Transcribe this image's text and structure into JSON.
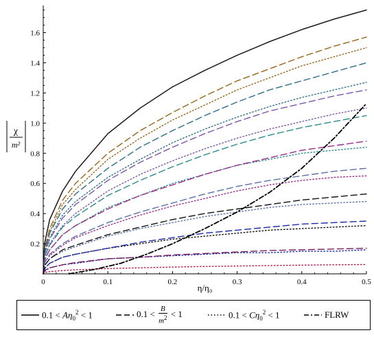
{
  "chart_data": {
    "type": "line",
    "title": "",
    "xlabel": "η/η₀",
    "ylabel": "χ/m²",
    "xlim": [
      0,
      0.5
    ],
    "ylim": [
      0,
      1.78
    ],
    "x_ticks": [
      "0",
      "0.1",
      "0.2",
      "0.3",
      "0.4",
      "0.5"
    ],
    "y_ticks": [
      "0.2",
      "0.4",
      "0.6",
      "0.8",
      "1.0",
      "1.2",
      "1.4",
      "1.6"
    ],
    "x_tick_values": [
      0,
      0.1,
      0.2,
      0.3,
      0.4,
      0.5
    ],
    "y_tick_values": [
      0.2,
      0.4,
      0.6,
      0.8,
      1.0,
      1.2,
      1.4,
      1.6
    ],
    "grid": false,
    "legend_position": "bottom",
    "legend": [
      {
        "style": "solid",
        "pre": "0.1 < ",
        "var": "A",
        "eta": "η",
        "sub": "0",
        "sup": "2",
        "post": " < 1"
      },
      {
        "style": "dashed",
        "pre": "0.1 < ",
        "num": "B",
        "den": "m",
        "den_sup": "2",
        "post": " < 1"
      },
      {
        "style": "dotted",
        "pre": "0.1 < ",
        "var": "C",
        "eta": "η",
        "sub": "0",
        "sup": "2",
        "post": " < 1"
      },
      {
        "style": "dashdot",
        "label": "FLRW"
      }
    ],
    "series": [
      {
        "style": "solid",
        "color": "#a04050",
        "x": [
          0,
          0.002,
          0.01,
          0.03,
          0.05,
          0.1,
          0.15,
          0.2,
          0.25,
          0.3,
          0.35,
          0.4,
          0.45,
          0.5
        ],
        "y": [
          0,
          0.2,
          0.36,
          0.55,
          0.68,
          0.93,
          1.1,
          1.24,
          1.35,
          1.45,
          1.54,
          1.62,
          1.69,
          1.75
        ]
      },
      {
        "style": "solid",
        "color": "#1a1a1a",
        "x": [
          0,
          0.002,
          0.01,
          0.03,
          0.05,
          0.1,
          0.15,
          0.2,
          0.25,
          0.3,
          0.35,
          0.4,
          0.45,
          0.5
        ],
        "y": [
          0,
          0.2,
          0.36,
          0.55,
          0.68,
          0.93,
          1.1,
          1.24,
          1.35,
          1.45,
          1.54,
          1.62,
          1.69,
          1.75
        ]
      },
      {
        "style": "dashed",
        "color": "#9a6418",
        "x": [
          0,
          0.003,
          0.01,
          0.03,
          0.05,
          0.1,
          0.15,
          0.2,
          0.25,
          0.3,
          0.35,
          0.4,
          0.45,
          0.5
        ],
        "y": [
          0,
          0.18,
          0.3,
          0.49,
          0.6,
          0.8,
          0.95,
          1.07,
          1.18,
          1.28,
          1.36,
          1.44,
          1.51,
          1.57
        ]
      },
      {
        "style": "dotted",
        "color": "#9a6418",
        "x": [
          0,
          0.003,
          0.01,
          0.03,
          0.05,
          0.1,
          0.15,
          0.2,
          0.25,
          0.3,
          0.35,
          0.4,
          0.45,
          0.5
        ],
        "y": [
          0,
          0.17,
          0.28,
          0.46,
          0.56,
          0.76,
          0.9,
          1.02,
          1.12,
          1.22,
          1.3,
          1.38,
          1.44,
          1.5
        ]
      },
      {
        "style": "dashed",
        "color": "#2a6f8a",
        "x": [
          0,
          0.003,
          0.01,
          0.03,
          0.05,
          0.1,
          0.15,
          0.2,
          0.25,
          0.3,
          0.35,
          0.4,
          0.45,
          0.5
        ],
        "y": [
          0,
          0.16,
          0.27,
          0.43,
          0.53,
          0.7,
          0.84,
          0.95,
          1.05,
          1.14,
          1.22,
          1.28,
          1.34,
          1.4
        ]
      },
      {
        "style": "dotted",
        "color": "#2a6f8a",
        "x": [
          0,
          0.003,
          0.01,
          0.03,
          0.05,
          0.1,
          0.15,
          0.2,
          0.25,
          0.3,
          0.35,
          0.4,
          0.45,
          0.5
        ],
        "y": [
          0,
          0.15,
          0.24,
          0.39,
          0.48,
          0.64,
          0.76,
          0.87,
          0.96,
          1.04,
          1.11,
          1.17,
          1.22,
          1.27
        ]
      },
      {
        "style": "dashed",
        "color": "#7a55a8",
        "x": [
          0,
          0.003,
          0.01,
          0.03,
          0.05,
          0.1,
          0.15,
          0.2,
          0.25,
          0.3,
          0.35,
          0.4,
          0.45,
          0.5
        ],
        "y": [
          0,
          0.14,
          0.23,
          0.37,
          0.46,
          0.62,
          0.74,
          0.84,
          0.93,
          1.01,
          1.08,
          1.13,
          1.18,
          1.22
        ]
      },
      {
        "style": "dotted",
        "color": "#7a55a8",
        "x": [
          0,
          0.003,
          0.01,
          0.03,
          0.05,
          0.1,
          0.15,
          0.2,
          0.25,
          0.3,
          0.35,
          0.4,
          0.45,
          0.5
        ],
        "y": [
          0,
          0.12,
          0.2,
          0.32,
          0.4,
          0.55,
          0.66,
          0.75,
          0.83,
          0.9,
          0.96,
          1.01,
          1.06,
          1.1
        ]
      },
      {
        "style": "dashed",
        "color": "#2a8a8a",
        "x": [
          0,
          0.003,
          0.01,
          0.03,
          0.05,
          0.1,
          0.15,
          0.2,
          0.25,
          0.3,
          0.35,
          0.4,
          0.45,
          0.5
        ],
        "y": [
          0,
          0.12,
          0.19,
          0.31,
          0.38,
          0.52,
          0.62,
          0.71,
          0.79,
          0.86,
          0.92,
          0.97,
          1.01,
          1.05
        ]
      },
      {
        "style": "dotted",
        "color": "#2a8a8a",
        "x": [
          0,
          0.003,
          0.01,
          0.03,
          0.05,
          0.1,
          0.15,
          0.2,
          0.25,
          0.3,
          0.35,
          0.4,
          0.45,
          0.5
        ],
        "y": [
          0,
          0.1,
          0.16,
          0.26,
          0.32,
          0.44,
          0.52,
          0.6,
          0.66,
          0.72,
          0.76,
          0.8,
          0.82,
          0.84
        ]
      },
      {
        "style": "dashed",
        "color": "#9a2a8a",
        "x": [
          0,
          0.003,
          0.01,
          0.03,
          0.05,
          0.1,
          0.15,
          0.2,
          0.25,
          0.3,
          0.35,
          0.4,
          0.45,
          0.5
        ],
        "y": [
          0,
          0.1,
          0.16,
          0.26,
          0.32,
          0.43,
          0.52,
          0.59,
          0.66,
          0.72,
          0.77,
          0.82,
          0.85,
          0.88
        ]
      },
      {
        "style": "dotted",
        "color": "#9a2a8a",
        "x": [
          0,
          0.003,
          0.01,
          0.03,
          0.05,
          0.1,
          0.15,
          0.2,
          0.25,
          0.3,
          0.35,
          0.4,
          0.45,
          0.5
        ],
        "y": [
          0,
          0.08,
          0.12,
          0.19,
          0.24,
          0.32,
          0.39,
          0.45,
          0.5,
          0.55,
          0.59,
          0.62,
          0.64,
          0.65
        ]
      },
      {
        "style": "dashed",
        "color": "#5a70a8",
        "x": [
          0,
          0.003,
          0.01,
          0.03,
          0.05,
          0.1,
          0.15,
          0.2,
          0.25,
          0.3,
          0.35,
          0.4,
          0.45,
          0.5
        ],
        "y": [
          0,
          0.08,
          0.13,
          0.2,
          0.25,
          0.34,
          0.41,
          0.47,
          0.53,
          0.58,
          0.62,
          0.65,
          0.68,
          0.7
        ]
      },
      {
        "style": "dotted",
        "color": "#5a70a8",
        "x": [
          0,
          0.003,
          0.01,
          0.03,
          0.05,
          0.1,
          0.15,
          0.2,
          0.25,
          0.3,
          0.35,
          0.4,
          0.45,
          0.5
        ],
        "y": [
          0,
          0.06,
          0.1,
          0.15,
          0.18,
          0.25,
          0.3,
          0.34,
          0.38,
          0.41,
          0.44,
          0.46,
          0.47,
          0.48
        ]
      },
      {
        "style": "dashed",
        "color": "#111111",
        "x": [
          0,
          0.003,
          0.01,
          0.03,
          0.05,
          0.1,
          0.15,
          0.2,
          0.25,
          0.3,
          0.35,
          0.4,
          0.45,
          0.5
        ],
        "y": [
          0,
          0.06,
          0.1,
          0.16,
          0.19,
          0.26,
          0.31,
          0.36,
          0.4,
          0.43,
          0.46,
          0.49,
          0.51,
          0.53
        ]
      },
      {
        "style": "dotted",
        "color": "#111111",
        "x": [
          0,
          0.003,
          0.01,
          0.03,
          0.05,
          0.1,
          0.15,
          0.2,
          0.25,
          0.3,
          0.35,
          0.4,
          0.45,
          0.5
        ],
        "y": [
          0,
          0.04,
          0.07,
          0.11,
          0.13,
          0.17,
          0.2,
          0.23,
          0.25,
          0.27,
          0.29,
          0.3,
          0.31,
          0.32
        ]
      },
      {
        "style": "dashed",
        "color": "#1a2aa8",
        "x": [
          0,
          0.003,
          0.01,
          0.03,
          0.05,
          0.1,
          0.15,
          0.2,
          0.25,
          0.3,
          0.35,
          0.4,
          0.45,
          0.5
        ],
        "y": [
          0,
          0.04,
          0.07,
          0.11,
          0.13,
          0.17,
          0.21,
          0.24,
          0.27,
          0.29,
          0.31,
          0.33,
          0.34,
          0.35
        ]
      },
      {
        "style": "dotted",
        "color": "#1a2aa8",
        "x": [
          0,
          0.003,
          0.01,
          0.03,
          0.05,
          0.1,
          0.15,
          0.2,
          0.25,
          0.3,
          0.35,
          0.4,
          0.45,
          0.5
        ],
        "y": [
          0,
          0.02,
          0.04,
          0.06,
          0.07,
          0.1,
          0.11,
          0.12,
          0.13,
          0.14,
          0.14,
          0.15,
          0.15,
          0.16
        ]
      },
      {
        "style": "dashed",
        "color": "#7a1a5a",
        "x": [
          0,
          0.003,
          0.01,
          0.03,
          0.05,
          0.1,
          0.15,
          0.2,
          0.25,
          0.3,
          0.35,
          0.4,
          0.45,
          0.5
        ],
        "y": [
          0,
          0.025,
          0.04,
          0.06,
          0.075,
          0.1,
          0.11,
          0.125,
          0.135,
          0.145,
          0.155,
          0.16,
          0.165,
          0.17
        ]
      },
      {
        "style": "dotted",
        "color": "#b01a4a",
        "x": [
          0,
          0.003,
          0.01,
          0.03,
          0.05,
          0.1,
          0.15,
          0.2,
          0.25,
          0.3,
          0.35,
          0.4,
          0.45,
          0.5
        ],
        "y": [
          0,
          0.01,
          0.015,
          0.022,
          0.027,
          0.035,
          0.04,
          0.045,
          0.049,
          0.052,
          0.055,
          0.058,
          0.06,
          0.062
        ]
      },
      {
        "style": "dashdot",
        "color": "#000000",
        "x": [
          0.04,
          0.08,
          0.12,
          0.16,
          0.2,
          0.25,
          0.3,
          0.35,
          0.4,
          0.45,
          0.5
        ],
        "y": [
          0,
          0.03,
          0.07,
          0.13,
          0.2,
          0.3,
          0.41,
          0.54,
          0.7,
          0.9,
          1.13
        ]
      }
    ]
  }
}
